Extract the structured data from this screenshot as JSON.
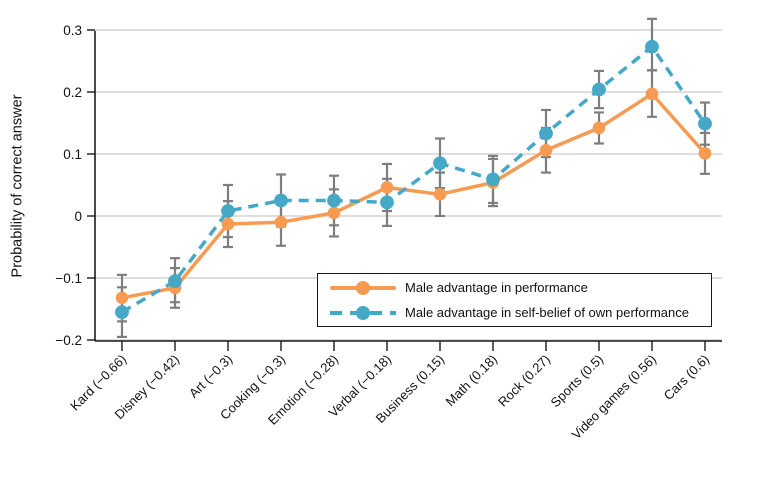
{
  "chart_data": {
    "type": "line",
    "title": "",
    "xlabel": "",
    "ylabel": "Probability of correct answer",
    "ylim": [
      -0.2,
      0.32
    ],
    "grid": true,
    "legend_position": "inside-bottom-right",
    "yticks": [
      {
        "v": 0.3,
        "label": "0.3"
      },
      {
        "v": 0.2,
        "label": "0.2"
      },
      {
        "v": 0.1,
        "label": "0.1"
      },
      {
        "v": 0.0,
        "label": "0"
      },
      {
        "v": -0.1,
        "label": "−0.1"
      },
      {
        "v": -0.2,
        "label": "−0.2"
      }
    ],
    "categories": [
      "Kard (−0.66)",
      "Disney (−0.42)",
      "Art (−0.3)",
      "Cooking (−0.3)",
      "Emotion (−0.28)",
      "Verbal (−0.18)",
      "Business (0.15)",
      "Math (0.18)",
      "Rock (0.27)",
      "Sports (0.5)",
      "Video games (0.56)",
      "Cars (0.6)"
    ],
    "series": [
      {
        "name": "Male advantage in performance",
        "color": "#F79B52",
        "line_style": "solid",
        "values": [
          -0.132,
          -0.116,
          -0.013,
          -0.01,
          0.005,
          0.046,
          0.035,
          0.054,
          0.106,
          0.142,
          0.197,
          0.101
        ],
        "ci_low": [
          -0.17,
          -0.148,
          -0.05,
          -0.048,
          -0.033,
          0.008,
          0.0,
          0.016,
          0.07,
          0.117,
          0.16,
          0.068
        ],
        "ci_high": [
          -0.095,
          -0.084,
          0.024,
          0.028,
          0.043,
          0.084,
          0.07,
          0.092,
          0.142,
          0.167,
          0.235,
          0.134
        ]
      },
      {
        "name": "Male advantage in self-belief of own performance",
        "color": "#45A8C7",
        "line_style": "dashed",
        "values": [
          -0.155,
          -0.105,
          0.008,
          0.025,
          0.025,
          0.022,
          0.085,
          0.059,
          0.133,
          0.204,
          0.273,
          0.149
        ],
        "ci_low": [
          -0.195,
          -0.139,
          -0.034,
          -0.017,
          -0.015,
          -0.016,
          0.045,
          0.021,
          0.095,
          0.174,
          0.235,
          0.115
        ],
        "ci_high": [
          -0.115,
          -0.068,
          0.05,
          0.067,
          0.065,
          0.06,
          0.125,
          0.097,
          0.171,
          0.234,
          0.318,
          0.183
        ]
      }
    ],
    "error_bar_color": "#7E7E7E",
    "gridline_color": "#CBCBCB",
    "axis_color": "#1a1a1a",
    "text_color": "#111111"
  }
}
